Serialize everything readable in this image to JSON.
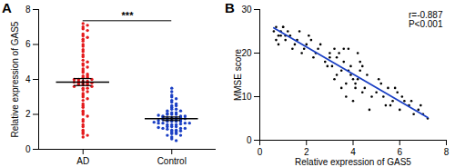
{
  "chart_data": [
    {
      "type": "strip",
      "panel": "A",
      "categories": [
        "AD",
        "Control"
      ],
      "colors": [
        "#e41a1c",
        "#1a3fc4"
      ],
      "values": [
        [
          7.2,
          7.1,
          7.0,
          6.9,
          6.8,
          6.6,
          6.5,
          6.4,
          6.3,
          6.2,
          6.0,
          5.9,
          5.7,
          5.6,
          5.4,
          5.3,
          5.1,
          5.0,
          4.9,
          4.8,
          4.7,
          4.6,
          4.5,
          4.4,
          4.3,
          4.2,
          4.2,
          4.1,
          4.1,
          4.0,
          4.0,
          4.0,
          3.9,
          3.9,
          3.9,
          3.8,
          3.8,
          3.8,
          3.8,
          3.7,
          3.7,
          3.7,
          3.6,
          3.6,
          3.5,
          3.5,
          3.4,
          3.3,
          3.2,
          3.1,
          3.0,
          2.9,
          2.8,
          2.6,
          2.5,
          2.4,
          2.2,
          2.1,
          2.0,
          1.9,
          1.7,
          1.6,
          1.4,
          1.3,
          1.1,
          1.0,
          0.9,
          0.8,
          0.7,
          3.85
        ],
        [
          3.5,
          3.3,
          3.1,
          3.0,
          2.9,
          2.8,
          2.7,
          2.6,
          2.5,
          2.5,
          2.4,
          2.3,
          2.3,
          2.2,
          2.2,
          2.1,
          2.1,
          2.0,
          2.0,
          2.0,
          1.9,
          1.9,
          1.9,
          1.8,
          1.8,
          1.8,
          1.8,
          1.7,
          1.7,
          1.7,
          1.7,
          1.7,
          1.6,
          1.6,
          1.6,
          1.6,
          1.5,
          1.5,
          1.5,
          1.5,
          1.4,
          1.4,
          1.4,
          1.3,
          1.3,
          1.3,
          1.2,
          1.2,
          1.2,
          1.1,
          1.1,
          1.0,
          1.0,
          0.9,
          0.9,
          0.8,
          0.8,
          0.7,
          0.6,
          0.5,
          2.05,
          1.85,
          1.75,
          1.65,
          1.55,
          1.45,
          1.95,
          1.25,
          1.15,
          1.05
        ]
      ],
      "mean": [
        3.85,
        1.75
      ],
      "error": [
        0.2,
        0.1
      ],
      "significance": {
        "label": "***",
        "between": [
          "AD",
          "Control"
        ]
      },
      "y_label": "Relative expression of GAS5",
      "ylim": [
        0,
        8
      ],
      "yticks": [
        0,
        2,
        4,
        6,
        8
      ]
    },
    {
      "type": "scatter",
      "panel": "B",
      "color": "#000000",
      "x": [
        0.6,
        0.7,
        0.8,
        0.9,
        1.0,
        1.1,
        1.2,
        0.7,
        0.9,
        1.0,
        1.3,
        1.5,
        0.8,
        1.1,
        1.4,
        1.6,
        1.8,
        2.0,
        2.1,
        2.3,
        2.5,
        1.7,
        1.9,
        2.2,
        2.4,
        2.6,
        2.8,
        3.0,
        3.1,
        3.2,
        3.3,
        3.4,
        3.5,
        3.6,
        3.7,
        3.8,
        3.9,
        4.0,
        4.1,
        4.2,
        4.3,
        4.4,
        3.0,
        3.2,
        3.5,
        3.7,
        3.9,
        4.1,
        4.3,
        2.9,
        3.3,
        3.6,
        3.8,
        4.0,
        4.2,
        4.5,
        4.6,
        4.8,
        5.0,
        5.2,
        5.4,
        5.5,
        5.7,
        5.9,
        4.7,
        5.1,
        5.3,
        5.6,
        5.8,
        6.0,
        6.2,
        6.4,
        6.6,
        6.8,
        7.0,
        7.2,
        6.1,
        6.5,
        6.9,
        4.4
      ],
      "values": [
        25,
        26,
        24,
        25,
        26,
        23,
        25,
        23,
        24,
        26,
        24,
        22,
        22,
        24,
        21,
        23,
        20,
        22,
        24,
        19,
        21,
        25,
        21,
        23,
        20,
        22,
        18,
        19,
        17,
        21,
        15,
        20,
        16,
        18,
        13,
        21,
        17,
        14,
        12,
        20,
        16,
        11,
        20,
        14,
        12,
        10,
        15,
        13,
        18,
        17,
        19,
        21,
        16,
        9,
        14,
        12,
        15,
        10,
        11,
        13,
        8,
        12,
        9,
        11,
        7,
        14,
        10,
        8,
        12,
        7,
        9,
        8,
        6,
        7,
        6,
        5,
        10,
        9,
        8,
        17
      ],
      "fit": {
        "x": [
          0.6,
          7.2
        ],
        "y": [
          25.8,
          5.2
        ],
        "color": "#1a3fc4"
      },
      "annotations": [
        "r=-0.887",
        "P<0.001"
      ],
      "x_label": "Relative expression of GAS5",
      "y_label": "MMSE score",
      "xlim": [
        0,
        8
      ],
      "xticks": [
        0,
        2,
        4,
        6,
        8
      ],
      "ylim": [
        0,
        30
      ],
      "yticks": [
        0,
        10,
        20,
        30
      ]
    }
  ]
}
